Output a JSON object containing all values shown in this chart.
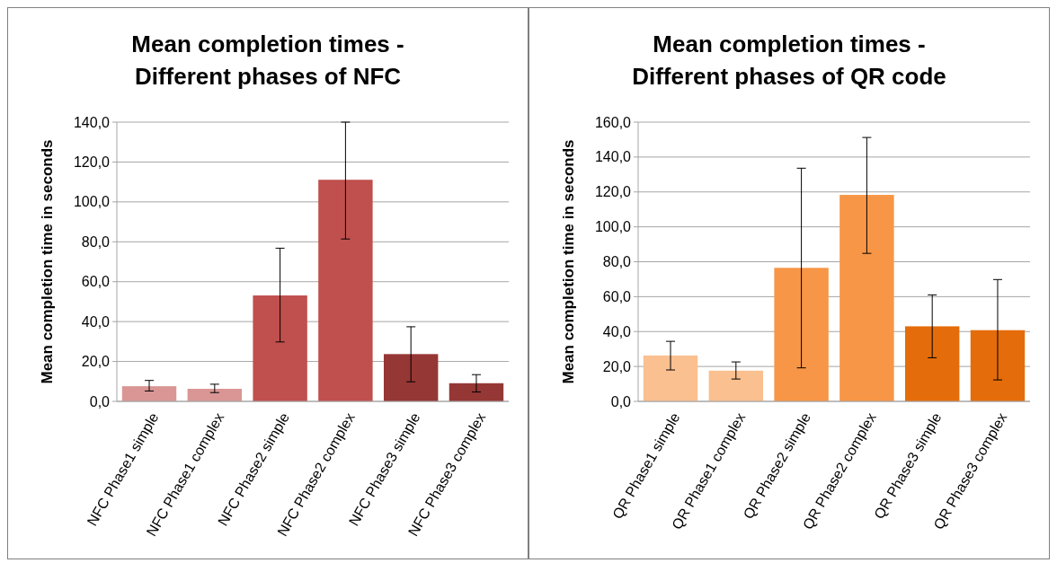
{
  "chart_data": [
    {
      "type": "bar",
      "title": "Mean completion times - Different phases of NFC",
      "ylabel": "Mean completion time in seconds",
      "categories": [
        "NFC Phase1 simple",
        "NFC Phase1 complex",
        "NFC Phase2 simple",
        "NFC Phase2 complex",
        "NFC Phase3 simple",
        "NFC Phase3 complex"
      ],
      "values": [
        7.6,
        6.3,
        53.1,
        111.1,
        23.7,
        9.1
      ],
      "colors": [
        "#d99694",
        "#d99694",
        "#c0504d",
        "#c0504d",
        "#953735",
        "#953735"
      ],
      "errors": [
        [
          5.2,
          10.5
        ],
        [
          4.4,
          8.6
        ],
        [
          29.8,
          76.8
        ],
        [
          81.4,
          140
        ],
        [
          9.8,
          37.4
        ],
        [
          4.7,
          13.4
        ]
      ],
      "ylim": [
        0,
        140
      ],
      "yticks": [
        {
          "value": 0,
          "label": "0,0"
        },
        {
          "value": 20,
          "label": "20,0"
        },
        {
          "value": 40,
          "label": "40,0"
        },
        {
          "value": 60,
          "label": "60,0"
        },
        {
          "value": 80,
          "label": "80,0"
        },
        {
          "value": 100,
          "label": "100,0"
        },
        {
          "value": 120,
          "label": "120,0"
        },
        {
          "value": 140,
          "label": "140,0"
        }
      ],
      "grid": "y"
    },
    {
      "type": "bar",
      "title": "Mean completion times - Different phases of QR code",
      "ylabel": "Mean completion time in seconds",
      "categories": [
        "QR Phase1 simple",
        "QR Phase1 complex",
        "QR Phase2 simple",
        "QR Phase2 complex",
        "QR Phase3 simple",
        "QR Phase3 complex"
      ],
      "values": [
        26.3,
        17.6,
        76.5,
        118.3,
        43.0,
        40.8
      ],
      "colors": [
        "#fac090",
        "#fac090",
        "#f79646",
        "#f79646",
        "#e46c0a",
        "#e46c0a"
      ],
      "errors": [
        [
          18,
          34.4
        ],
        [
          12.8,
          22.6
        ],
        [
          19.2,
          133.6
        ],
        [
          84.8,
          151.2
        ],
        [
          25,
          61
        ],
        [
          12.3,
          69.8
        ]
      ],
      "ylim": [
        0,
        160
      ],
      "yticks": [
        {
          "value": 0,
          "label": "0,0"
        },
        {
          "value": 20,
          "label": "20,0"
        },
        {
          "value": 40,
          "label": "40,0"
        },
        {
          "value": 60,
          "label": "60,0"
        },
        {
          "value": 80,
          "label": "80,0"
        },
        {
          "value": 100,
          "label": "100,0"
        },
        {
          "value": 120,
          "label": "120,0"
        },
        {
          "value": 140,
          "label": "140,0"
        },
        {
          "value": 160,
          "label": "160,0"
        }
      ],
      "grid": "y"
    }
  ]
}
